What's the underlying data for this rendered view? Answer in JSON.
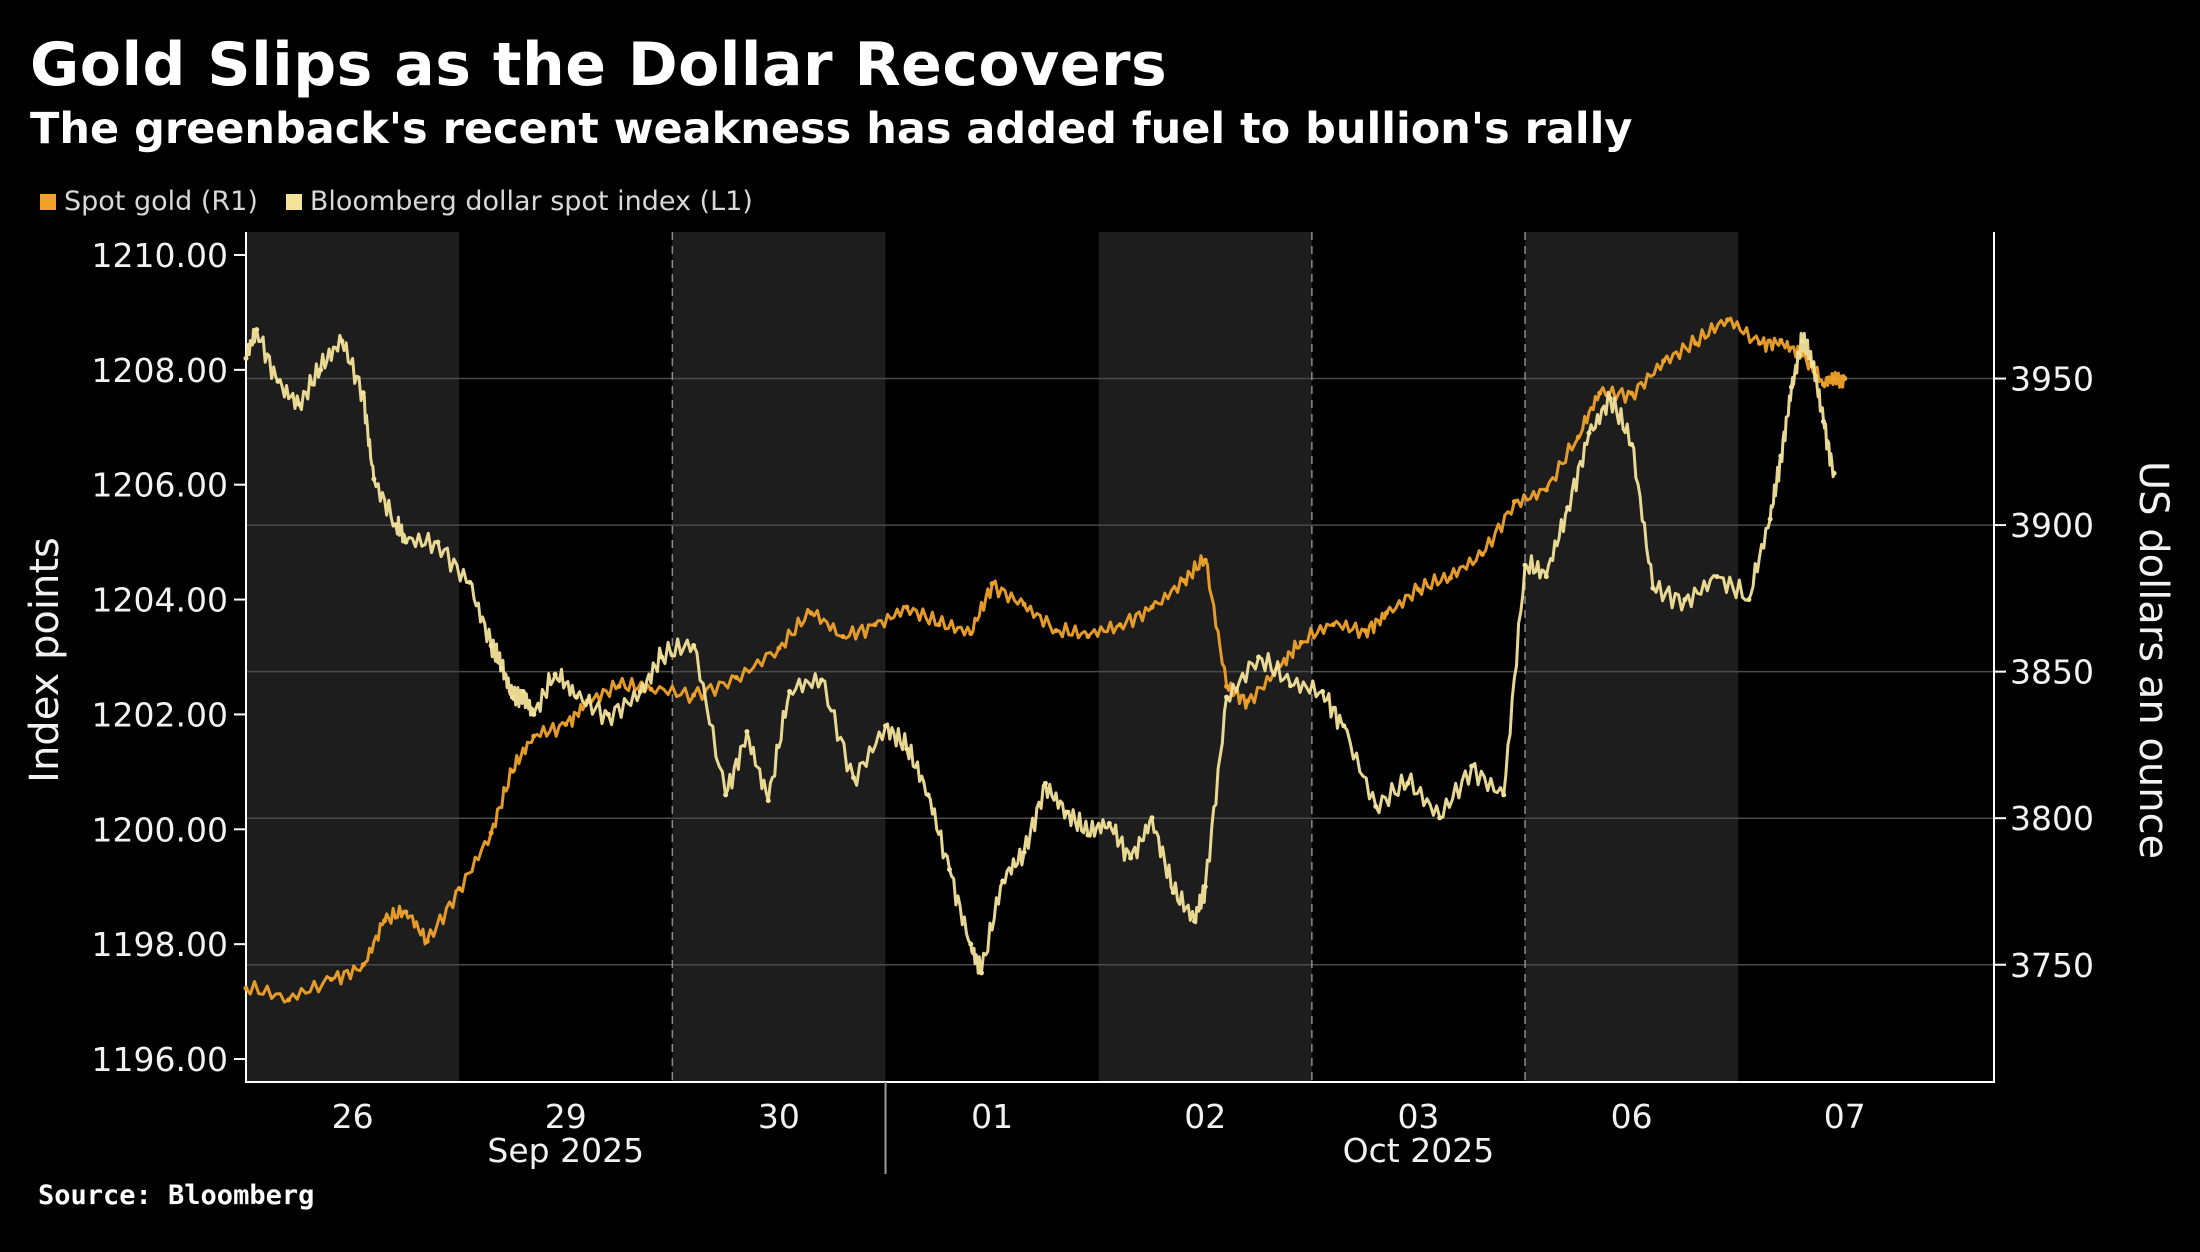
{
  "colors": {
    "background": "#000000",
    "band": "#1d1d1d",
    "gold_series": "#f0a22a",
    "dollar_series": "#f3e39a",
    "grid": "#4a4a4a"
  },
  "chart_data": {
    "type": "line",
    "title": "Gold Slips as the Dollar Recovers",
    "subtitle": "The greenback's recent weakness has added fuel to bullion's rally",
    "source": "Source: Bloomberg",
    "legend": [
      {
        "name": "Spot gold (R1)",
        "color": "#f0a22a"
      },
      {
        "name": "Bloomberg dollar spot index (L1)",
        "color": "#f3e39a"
      }
    ],
    "y_left": {
      "label": "Index points",
      "ylim": [
        1195.6,
        1210.4
      ],
      "ticks": [
        1196,
        1198,
        1200,
        1202,
        1204,
        1206,
        1208,
        1210
      ],
      "tick_labels": [
        "1196.00",
        "1198.00",
        "1200.00",
        "1202.00",
        "1204.00",
        "1206.00",
        "1208.00",
        "1210.00"
      ]
    },
    "y_right": {
      "label": "US dollars an ounce",
      "ylim": [
        3710,
        4000
      ],
      "ticks": [
        3750,
        3800,
        3850,
        3900,
        3950
      ],
      "tick_labels": [
        "3750",
        "3800",
        "3850",
        "3900",
        "3950"
      ]
    },
    "x_axis": {
      "xlim": [
        0,
        8.2
      ],
      "ticks": [
        0.5,
        1.5,
        2.5,
        3.5,
        4.5,
        5.5,
        6.5,
        7.5
      ],
      "tick_labels": [
        "26",
        "29",
        "30",
        "01",
        "02",
        "03",
        "06",
        "07"
      ],
      "months": [
        {
          "label": "Sep 2025",
          "center": 1.5
        },
        {
          "label": "Oct 2025",
          "center": 5.5
        }
      ],
      "month_divider": 3.0,
      "shaded_days": [
        [
          0,
          1
        ],
        [
          2,
          3
        ],
        [
          4,
          5
        ],
        [
          6,
          7
        ]
      ],
      "day_dividers": [
        2.0,
        5.0,
        6.0
      ]
    },
    "series": [
      {
        "name": "Spot gold (R1)",
        "axis": "right",
        "color": "#f0a22a",
        "x": [
          0.0,
          0.2,
          0.4,
          0.55,
          0.65,
          0.75,
          0.85,
          1.0,
          1.15,
          1.25,
          1.35,
          1.5,
          1.6,
          1.75,
          1.9,
          2.1,
          2.3,
          2.5,
          2.65,
          2.8,
          2.95,
          3.1,
          3.25,
          3.4,
          3.5,
          3.65,
          3.8,
          3.95,
          4.1,
          4.25,
          4.4,
          4.5,
          4.6,
          4.7,
          4.85,
          4.95,
          5.1,
          5.25,
          5.35,
          5.5,
          5.65,
          5.8,
          5.95,
          6.1,
          6.25,
          6.35,
          6.5,
          6.65,
          6.8,
          6.95,
          7.1,
          7.2,
          7.3,
          7.4,
          7.45,
          7.5
        ],
        "values": [
          3742,
          3738,
          3745,
          3750,
          3765,
          3768,
          3758,
          3776,
          3795,
          3816,
          3828,
          3832,
          3840,
          3845,
          3844,
          3842,
          3848,
          3858,
          3870,
          3862,
          3866,
          3872,
          3866,
          3863,
          3880,
          3873,
          3864,
          3862,
          3866,
          3872,
          3881,
          3888,
          3845,
          3840,
          3852,
          3860,
          3866,
          3864,
          3870,
          3878,
          3882,
          3890,
          3908,
          3912,
          3930,
          3945,
          3945,
          3956,
          3962,
          3970,
          3962,
          3963,
          3958,
          3948,
          3950,
          3950
        ]
      },
      {
        "name": "Bloomberg dollar spot index (L1)",
        "axis": "left",
        "color": "#f3e39a",
        "x": [
          0.0,
          0.05,
          0.15,
          0.25,
          0.35,
          0.45,
          0.55,
          0.6,
          0.7,
          0.75,
          0.9,
          1.05,
          1.15,
          1.2,
          1.25,
          1.3,
          1.35,
          1.45,
          1.55,
          1.7,
          1.85,
          1.95,
          2.1,
          2.25,
          2.35,
          2.45,
          2.55,
          2.7,
          2.85,
          3.0,
          3.1,
          3.2,
          3.3,
          3.4,
          3.45,
          3.55,
          3.65,
          3.75,
          3.85,
          3.95,
          4.05,
          4.15,
          4.25,
          4.35,
          4.45,
          4.5,
          4.6,
          4.75,
          4.9,
          5.05,
          5.15,
          5.3,
          5.45,
          5.6,
          5.75,
          5.9,
          6.0,
          6.1,
          6.2,
          6.3,
          6.4,
          6.5,
          6.6,
          6.75,
          6.9,
          7.05,
          7.15,
          7.2,
          7.25,
          7.3,
          7.35,
          7.4,
          7.45
        ],
        "values": [
          1208.2,
          1208.7,
          1207.8,
          1207.4,
          1208.0,
          1208.5,
          1207.6,
          1206.1,
          1205.3,
          1205.0,
          1205.0,
          1204.3,
          1203.2,
          1202.8,
          1202.3,
          1202.4,
          1202.0,
          1202.7,
          1202.3,
          1202.0,
          1202.4,
          1203.0,
          1203.2,
          1200.6,
          1201.7,
          1200.5,
          1202.4,
          1202.6,
          1200.9,
          1201.8,
          1201.4,
          1200.6,
          1199.3,
          1198.0,
          1197.5,
          1199.1,
          1199.6,
          1200.8,
          1200.3,
          1199.9,
          1200.1,
          1199.5,
          1200.2,
          1198.9,
          1198.4,
          1199.0,
          1202.3,
          1203.0,
          1202.5,
          1202.4,
          1201.8,
          1200.4,
          1200.8,
          1200.2,
          1201.1,
          1200.6,
          1204.6,
          1204.4,
          1205.6,
          1206.9,
          1207.5,
          1206.7,
          1204.2,
          1204.0,
          1204.4,
          1204.0,
          1205.4,
          1206.5,
          1207.7,
          1208.5,
          1208.1,
          1207.1,
          1206.2
        ]
      }
    ]
  }
}
